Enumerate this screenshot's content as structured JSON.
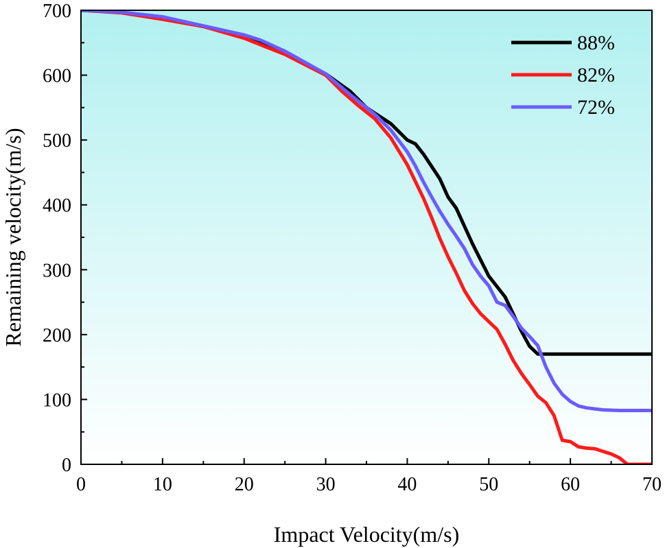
{
  "chart_data": {
    "type": "line",
    "title": "",
    "xlabel": "Impact Velocity(m/s)",
    "ylabel": "Remaining velocity(m/s)",
    "xlim": [
      0,
      70
    ],
    "ylim": [
      0,
      700
    ],
    "x_ticks": [
      0,
      10,
      20,
      30,
      40,
      50,
      60,
      70
    ],
    "y_ticks": [
      0,
      100,
      200,
      300,
      400,
      500,
      600,
      700
    ],
    "x_tick_labels": [
      "0",
      "10",
      "20",
      "30",
      "40",
      "50",
      "60",
      "70"
    ],
    "y_tick_labels": [
      "0",
      "100",
      "200",
      "300",
      "400",
      "500",
      "600",
      "700"
    ],
    "grid": false,
    "legend_position": "top-right",
    "background_gradient": [
      "#b2f0f0",
      "#ffffff"
    ],
    "series": [
      {
        "name": "88%",
        "color": "#000000",
        "x": [
          0,
          5,
          10,
          15,
          20,
          25,
          30,
          33,
          35,
          38,
          40,
          41,
          42,
          44,
          45,
          46,
          48,
          50,
          52,
          54,
          55,
          56,
          57,
          60,
          65,
          70
        ],
        "y": [
          700,
          697,
          688,
          675,
          660,
          635,
          602,
          575,
          550,
          525,
          500,
          494,
          478,
          440,
          412,
          395,
          340,
          290,
          258,
          205,
          182,
          170,
          170,
          170,
          170,
          170
        ]
      },
      {
        "name": "82%",
        "color": "#ff1a1a",
        "x": [
          0,
          5,
          10,
          15,
          20,
          25,
          30,
          32,
          34,
          36,
          38,
          40,
          42,
          43,
          44,
          45,
          46,
          47,
          48,
          49,
          50,
          51,
          52,
          53,
          54,
          55,
          56,
          57,
          58,
          59,
          60,
          61,
          62,
          63,
          64,
          65,
          66,
          67,
          68,
          70
        ],
        "y": [
          700,
          696,
          686,
          675,
          657,
          632,
          600,
          575,
          553,
          533,
          503,
          462,
          410,
          380,
          348,
          320,
          295,
          268,
          248,
          232,
          220,
          208,
          185,
          160,
          140,
          123,
          105,
          95,
          75,
          37,
          35,
          27,
          25,
          24,
          20,
          16,
          10,
          0,
          0,
          0
        ]
      },
      {
        "name": "72%",
        "color": "#6a5cff",
        "x": [
          0,
          5,
          10,
          15,
          20,
          22,
          25,
          30,
          33,
          36,
          38,
          40,
          41,
          42,
          43,
          44,
          45,
          46,
          47,
          48,
          49,
          50,
          51,
          52,
          53,
          54,
          55,
          56,
          57,
          58,
          59,
          60,
          61,
          62,
          64,
          66,
          70
        ],
        "y": [
          700,
          697,
          690,
          676,
          662,
          654,
          637,
          602,
          570,
          540,
          515,
          482,
          460,
          435,
          412,
          390,
          370,
          352,
          333,
          308,
          290,
          275,
          250,
          245,
          228,
          210,
          197,
          183,
          150,
          125,
          108,
          97,
          90,
          87,
          84,
          83,
          83
        ]
      }
    ]
  }
}
